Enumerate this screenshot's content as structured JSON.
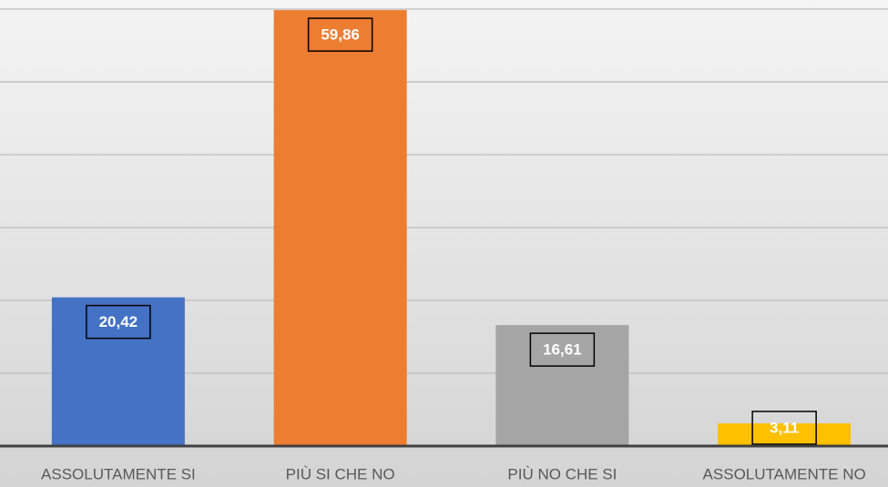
{
  "chart_data": {
    "type": "bar",
    "categories": [
      "ASSOLUTAMENTE SI",
      "PIÙ SI CHE NO",
      "PIÙ NO CHE SI",
      "ASSOLUTAMENTE NO"
    ],
    "values": [
      20.42,
      59.86,
      16.61,
      3.11
    ],
    "value_labels": [
      "20,42",
      "59,86",
      "16,61",
      "3,11"
    ],
    "colors": [
      "#4472c4",
      "#ed7d31",
      "#a5a5a5",
      "#ffc000"
    ],
    "ylim": [
      0,
      60
    ],
    "yticks": [
      0,
      10,
      20,
      30,
      40,
      50,
      60
    ],
    "grid": true
  }
}
